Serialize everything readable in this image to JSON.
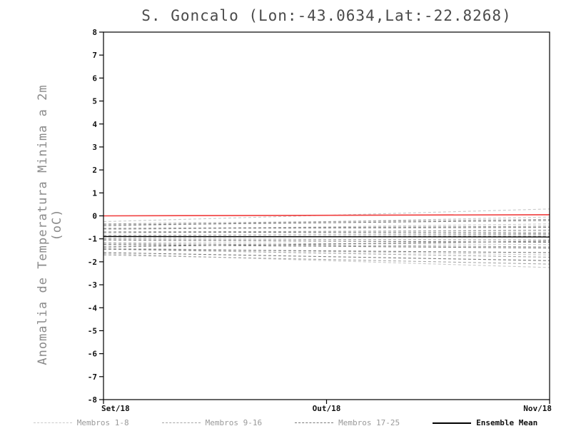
{
  "chart_data": {
    "type": "line",
    "title": "S. Goncalo (Lon:-43.0634,Lat:-22.8268)",
    "ylabel": "Anomalia de Temperatura Minima a 2m (oC)",
    "xlabel": "",
    "ylim": [
      -8,
      8
    ],
    "ytick_step": 1,
    "x_tick_labels": [
      "Set/18",
      "Out/18",
      "Nov/18"
    ],
    "x_tick_positions": [
      0,
      0.5,
      1
    ],
    "grid": false,
    "legend_position": "bottom",
    "reference_line": {
      "name": "zero-anomaly-reference",
      "color": "#f03c3c",
      "values": [
        0.0,
        0.05
      ]
    },
    "groups": [
      {
        "name": "Membros 1-8",
        "color": "#c9c9c9",
        "style": "dashed",
        "members": [
          [
            -0.25,
            0.3
          ],
          [
            -0.45,
            -0.05
          ],
          [
            -0.6,
            -0.35
          ],
          [
            -0.75,
            -0.6
          ],
          [
            -0.95,
            -0.85
          ],
          [
            -1.15,
            -1.25
          ],
          [
            -1.4,
            -1.7
          ],
          [
            -1.65,
            -2.25
          ]
        ]
      },
      {
        "name": "Membros 9-16",
        "color": "#a6a6a6",
        "style": "dashed",
        "members": [
          [
            -0.35,
            -0.15
          ],
          [
            -0.55,
            -0.45
          ],
          [
            -0.7,
            -0.65
          ],
          [
            -0.85,
            -0.8
          ],
          [
            -1.0,
            -1.05
          ],
          [
            -1.2,
            -1.35
          ],
          [
            -1.45,
            -1.8
          ],
          [
            -1.7,
            -2.1
          ]
        ]
      },
      {
        "name": "Membros 17-25",
        "color": "#7a7a7a",
        "style": "dashed",
        "members": [
          [
            -0.4,
            -0.2
          ],
          [
            -0.55,
            -0.5
          ],
          [
            -0.7,
            -0.75
          ],
          [
            -0.9,
            -0.9
          ],
          [
            -1.05,
            -1.15
          ],
          [
            -1.25,
            -1.4
          ],
          [
            -1.45,
            -1.6
          ],
          [
            -1.6,
            -1.95
          ],
          [
            -1.35,
            -1.1
          ]
        ]
      }
    ],
    "ensemble_mean": {
      "name": "Ensemble Mean",
      "color": "#000000",
      "style": "solid",
      "values": [
        -0.9,
        -0.92
      ]
    }
  }
}
